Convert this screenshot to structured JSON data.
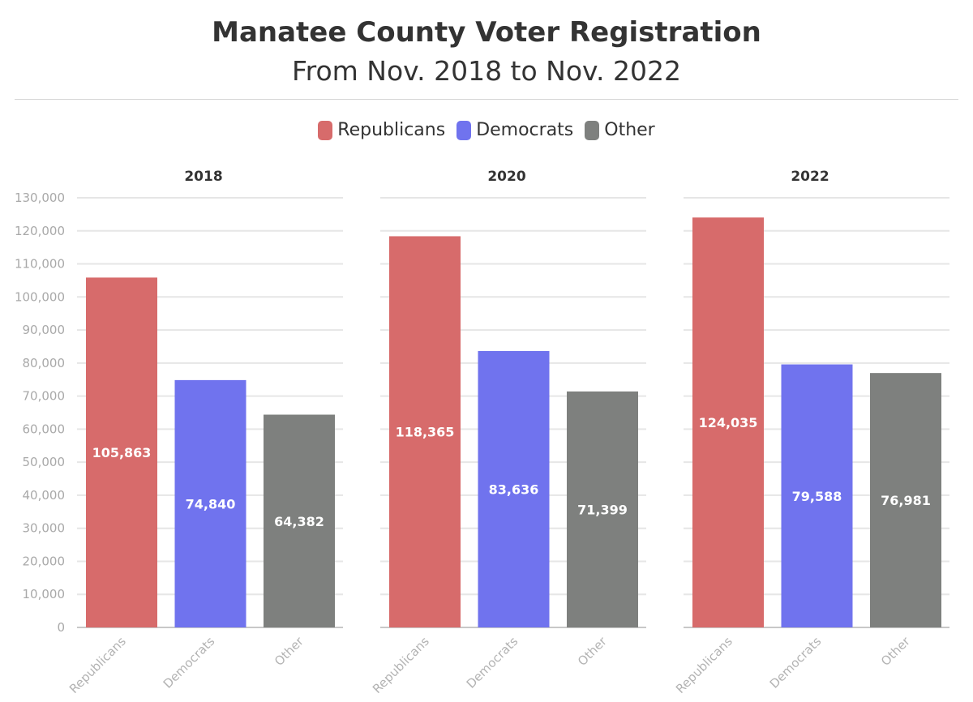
{
  "chart_data": {
    "type": "bar",
    "title": "Manatee County Voter Registration",
    "subtitle": "From Nov. 2018 to Nov. 2022",
    "legend_position": "top-center",
    "grid": true,
    "ylim": [
      0,
      130000
    ],
    "yticks": [
      0,
      10000,
      20000,
      30000,
      40000,
      50000,
      60000,
      70000,
      80000,
      90000,
      100000,
      110000,
      120000,
      130000
    ],
    "categories": [
      "Republicans",
      "Democrats",
      "Other"
    ],
    "series": [
      {
        "name": "Republicans",
        "color": "#d76b6b"
      },
      {
        "name": "Democrats",
        "color": "#7073ee"
      },
      {
        "name": "Other",
        "color": "#7e807e"
      }
    ],
    "panels": [
      {
        "title": "2018",
        "values": [
          105863,
          74840,
          64382
        ]
      },
      {
        "title": "2020",
        "values": [
          118365,
          83636,
          71399
        ]
      },
      {
        "title": "2022",
        "values": [
          124035,
          79588,
          76981
        ]
      }
    ]
  }
}
